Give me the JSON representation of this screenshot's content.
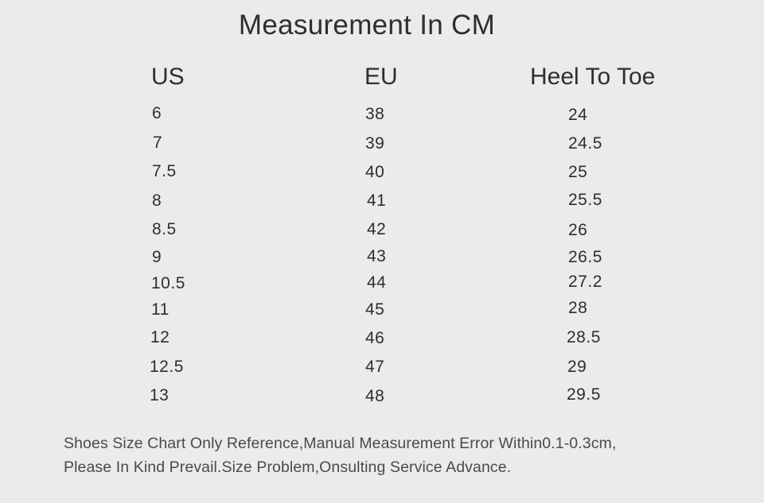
{
  "title": "Measurement In CM",
  "table": {
    "headers": [
      "US",
      "EU",
      "Heel To Toe"
    ],
    "rows": [
      [
        "6",
        "38",
        "24"
      ],
      [
        "7",
        "39",
        "24.5"
      ],
      [
        "7.5",
        "40",
        "25"
      ],
      [
        "8",
        "41",
        "25.5"
      ],
      [
        "8.5",
        "42",
        "26"
      ],
      [
        "9",
        "43",
        "26.5"
      ],
      [
        "10.5",
        "44",
        "27.2"
      ],
      [
        "11",
        "45",
        "28"
      ],
      [
        "12",
        "46",
        "28.5"
      ],
      [
        "12.5",
        "47",
        "29"
      ],
      [
        "13",
        "48",
        "29.5"
      ]
    ]
  },
  "note": {
    "line1": "Shoes Size Chart Only Reference,Manual Measurement Error Within0.1-0.3cm,",
    "line2": "Please In Kind Prevail.Size Problem,Onsulting Service Advance."
  }
}
